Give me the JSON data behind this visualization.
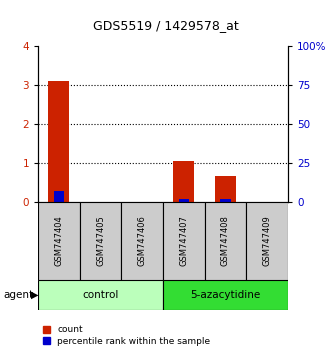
{
  "title": "GDS5519 / 1429578_at",
  "samples": [
    "GSM747404",
    "GSM747405",
    "GSM747406",
    "GSM747407",
    "GSM747408",
    "GSM747409"
  ],
  "count_values": [
    3.1,
    0.0,
    0.0,
    1.05,
    0.65,
    0.0
  ],
  "percentile_values": [
    7.0,
    0.0,
    0.0,
    2.0,
    2.0,
    0.0
  ],
  "ylim_left": [
    0,
    4
  ],
  "ylim_right": [
    0,
    100
  ],
  "yticks_left": [
    0,
    1,
    2,
    3,
    4
  ],
  "yticks_right": [
    0,
    25,
    50,
    75,
    100
  ],
  "ytick_labels_left": [
    "0",
    "1",
    "2",
    "3",
    "4"
  ],
  "ytick_labels_right": [
    "0",
    "25",
    "50",
    "75",
    "100%"
  ],
  "groups": [
    {
      "label": "control",
      "indices": [
        0,
        1,
        2
      ],
      "color": "#bbffbb"
    },
    {
      "label": "5-azacytidine",
      "indices": [
        3,
        4,
        5
      ],
      "color": "#33dd33"
    }
  ],
  "agent_label": "agent",
  "color_count": "#cc2200",
  "color_percentile": "#0000cc",
  "bg_color_plot": "#ffffff",
  "bg_color_sample": "#cccccc",
  "legend_items": [
    "count",
    "percentile rank within the sample"
  ]
}
